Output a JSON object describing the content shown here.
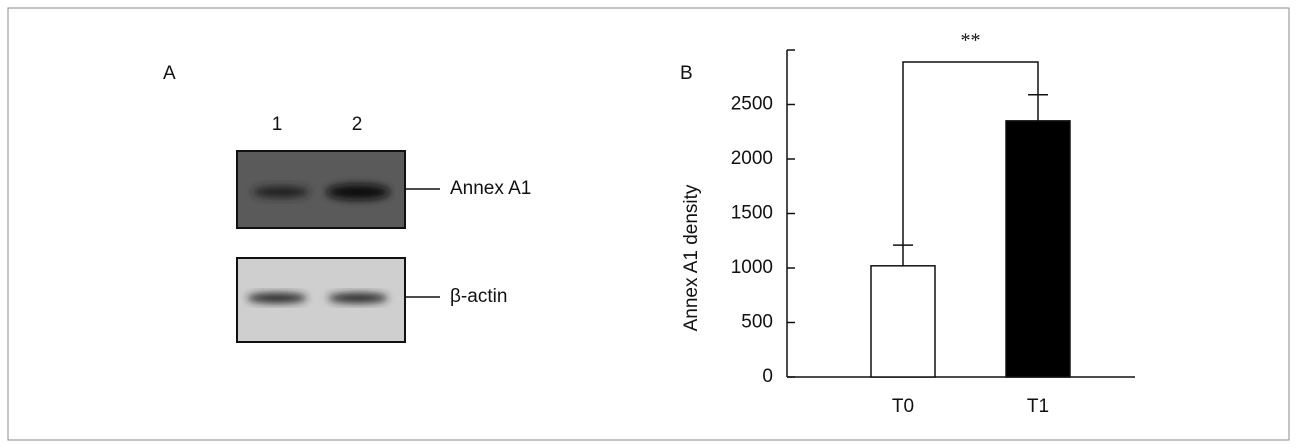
{
  "panel_a": {
    "label": "A",
    "lanes": [
      "1",
      "2"
    ],
    "bands": [
      "Annex A1",
      "β-actin"
    ]
  },
  "chart_data": {
    "type": "bar",
    "panel_label": "B",
    "y_label": "Annex A1 density",
    "categories": [
      "T0",
      "T1"
    ],
    "values": [
      1020,
      2350
    ],
    "errors": [
      190,
      240
    ],
    "colors": [
      "#ffffff",
      "#000000"
    ],
    "annotation": "**",
    "ylim": [
      0,
      3000
    ],
    "yticks": [
      0,
      500,
      1000,
      1500,
      2000,
      2500
    ]
  }
}
